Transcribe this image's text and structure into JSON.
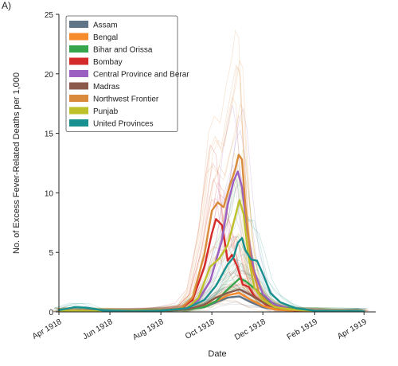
{
  "panel_label": "A)",
  "chart_data": {
    "type": "line",
    "xlabel": "Date",
    "ylabel": "No. of Excess Fever-Related Deaths per 1,000",
    "ylim": [
      0,
      25
    ],
    "yticks": [
      0,
      5,
      10,
      15,
      20,
      25
    ],
    "x_range": [
      "1918-04-01",
      "1919-04-15"
    ],
    "xticks": [
      {
        "date": "1918-04-01",
        "label": "Apr 1918"
      },
      {
        "date": "1918-06-01",
        "label": "Jun 1918"
      },
      {
        "date": "1918-08-01",
        "label": "Aug 1918"
      },
      {
        "date": "1918-10-01",
        "label": "Oct 1918"
      },
      {
        "date": "1918-12-01",
        "label": "Dec 1918"
      },
      {
        "date": "1919-02-01",
        "label": "Feb 1919"
      },
      {
        "date": "1919-04-01",
        "label": "Apr 1919"
      }
    ],
    "legend_position": "top-left",
    "grid": false,
    "series": [
      {
        "name": "Assam",
        "color": "#607487",
        "points": [
          [
            "1918-04-01",
            0.1
          ],
          [
            "1918-06-01",
            0.05
          ],
          [
            "1918-08-01",
            0.1
          ],
          [
            "1918-09-01",
            0.2
          ],
          [
            "1918-09-22",
            0.4
          ],
          [
            "1918-10-06",
            0.8
          ],
          [
            "1918-10-20",
            1.2
          ],
          [
            "1918-11-03",
            1.3
          ],
          [
            "1918-11-17",
            0.8
          ],
          [
            "1918-12-01",
            0.4
          ],
          [
            "1918-12-15",
            0.2
          ],
          [
            "1919-01-05",
            0.1
          ],
          [
            "1919-02-01",
            0.05
          ],
          [
            "1919-04-01",
            0.05
          ]
        ]
      },
      {
        "name": "Bengal",
        "color": "#f58b2b",
        "points": [
          [
            "1918-04-01",
            0.1
          ],
          [
            "1918-06-01",
            0.05
          ],
          [
            "1918-08-01",
            0.1
          ],
          [
            "1918-09-01",
            0.2
          ],
          [
            "1918-09-22",
            0.5
          ],
          [
            "1918-10-06",
            0.9
          ],
          [
            "1918-10-20",
            1.4
          ],
          [
            "1918-11-03",
            1.6
          ],
          [
            "1918-11-17",
            1.0
          ],
          [
            "1918-12-01",
            0.5
          ],
          [
            "1918-12-15",
            0.2
          ],
          [
            "1919-01-05",
            0.1
          ],
          [
            "1919-02-01",
            0.05
          ],
          [
            "1919-04-01",
            0.05
          ]
        ]
      },
      {
        "name": "Bihar and Orissa",
        "color": "#35a64b",
        "points": [
          [
            "1918-04-01",
            0.1
          ],
          [
            "1918-06-01",
            0.05
          ],
          [
            "1918-08-01",
            0.1
          ],
          [
            "1918-09-01",
            0.2
          ],
          [
            "1918-09-22",
            0.4
          ],
          [
            "1918-10-06",
            0.9
          ],
          [
            "1918-10-20",
            1.9
          ],
          [
            "1918-11-03",
            2.8
          ],
          [
            "1918-11-10",
            2.6
          ],
          [
            "1918-11-24",
            1.8
          ],
          [
            "1918-12-08",
            0.9
          ],
          [
            "1918-12-22",
            0.4
          ],
          [
            "1919-01-12",
            0.2
          ],
          [
            "1919-02-01",
            0.1
          ],
          [
            "1919-04-01",
            0.05
          ]
        ]
      },
      {
        "name": "Bombay",
        "color": "#d42a2a",
        "points": [
          [
            "1918-04-01",
            0.1
          ],
          [
            "1918-06-01",
            0.05
          ],
          [
            "1918-08-01",
            0.1
          ],
          [
            "1918-08-25",
            0.3
          ],
          [
            "1918-09-08",
            1.0
          ],
          [
            "1918-09-22",
            3.8
          ],
          [
            "1918-10-01",
            6.6
          ],
          [
            "1918-10-06",
            7.8
          ],
          [
            "1918-10-13",
            7.3
          ],
          [
            "1918-10-20",
            4.3
          ],
          [
            "1918-10-25",
            4.8
          ],
          [
            "1918-10-31",
            3.9
          ],
          [
            "1918-11-07",
            2.3
          ],
          [
            "1918-11-14",
            2.1
          ],
          [
            "1918-11-21",
            1.3
          ],
          [
            "1918-12-05",
            0.6
          ],
          [
            "1918-12-20",
            0.3
          ],
          [
            "1919-01-10",
            0.1
          ],
          [
            "1919-04-01",
            0.05
          ]
        ]
      },
      {
        "name": "Central Province and Berar",
        "color": "#9a5fc0",
        "points": [
          [
            "1918-04-01",
            0.1
          ],
          [
            "1918-06-01",
            0.05
          ],
          [
            "1918-08-01",
            0.1
          ],
          [
            "1918-09-01",
            0.3
          ],
          [
            "1918-09-15",
            1.0
          ],
          [
            "1918-09-29",
            2.6
          ],
          [
            "1918-10-13",
            6.0
          ],
          [
            "1918-10-20",
            9.0
          ],
          [
            "1918-10-27",
            11.0
          ],
          [
            "1918-11-01",
            11.8
          ],
          [
            "1918-11-06",
            10.5
          ],
          [
            "1918-11-12",
            7.0
          ],
          [
            "1918-11-20",
            3.5
          ],
          [
            "1918-12-01",
            1.5
          ],
          [
            "1918-12-15",
            0.6
          ],
          [
            "1919-01-05",
            0.2
          ],
          [
            "1919-02-01",
            0.1
          ],
          [
            "1919-04-01",
            0.05
          ]
        ]
      },
      {
        "name": "Madras",
        "color": "#8b5a4a",
        "points": [
          [
            "1918-04-01",
            0.1
          ],
          [
            "1918-06-01",
            0.05
          ],
          [
            "1918-08-01",
            0.1
          ],
          [
            "1918-09-01",
            0.2
          ],
          [
            "1918-09-22",
            0.6
          ],
          [
            "1918-10-06",
            1.2
          ],
          [
            "1918-10-20",
            1.6
          ],
          [
            "1918-11-03",
            1.9
          ],
          [
            "1918-11-17",
            1.4
          ],
          [
            "1918-12-01",
            0.8
          ],
          [
            "1918-12-15",
            0.4
          ],
          [
            "1919-01-05",
            0.2
          ],
          [
            "1919-02-01",
            0.1
          ],
          [
            "1919-04-01",
            0.05
          ]
        ]
      },
      {
        "name": "Northwest Frontier",
        "color": "#d98a3a",
        "points": [
          [
            "1918-04-01",
            0.1
          ],
          [
            "1918-06-01",
            0.05
          ],
          [
            "1918-08-01",
            0.1
          ],
          [
            "1918-08-25",
            0.3
          ],
          [
            "1918-09-08",
            1.2
          ],
          [
            "1918-09-22",
            4.8
          ],
          [
            "1918-10-01",
            8.5
          ],
          [
            "1918-10-08",
            9.2
          ],
          [
            "1918-10-15",
            8.8
          ],
          [
            "1918-10-22",
            10.5
          ],
          [
            "1918-10-29",
            12.0
          ],
          [
            "1918-11-02",
            13.2
          ],
          [
            "1918-11-06",
            12.8
          ],
          [
            "1918-11-10",
            9.0
          ],
          [
            "1918-11-17",
            4.0
          ],
          [
            "1918-11-27",
            1.5
          ],
          [
            "1918-12-10",
            0.6
          ],
          [
            "1918-12-25",
            0.2
          ],
          [
            "1919-01-20",
            0.1
          ],
          [
            "1919-04-01",
            0.05
          ]
        ]
      },
      {
        "name": "Punjab",
        "color": "#bfc12a",
        "points": [
          [
            "1918-04-01",
            0.1
          ],
          [
            "1918-06-01",
            0.05
          ],
          [
            "1918-08-01",
            0.1
          ],
          [
            "1918-09-01",
            0.3
          ],
          [
            "1918-09-15",
            1.2
          ],
          [
            "1918-09-29",
            3.8
          ],
          [
            "1918-10-10",
            4.5
          ],
          [
            "1918-10-20",
            5.6
          ],
          [
            "1918-10-27",
            7.5
          ],
          [
            "1918-11-03",
            9.4
          ],
          [
            "1918-11-08",
            8.2
          ],
          [
            "1918-11-14",
            4.5
          ],
          [
            "1918-11-21",
            2.0
          ],
          [
            "1918-12-01",
            1.0
          ],
          [
            "1918-12-15",
            0.4
          ],
          [
            "1919-01-05",
            0.2
          ],
          [
            "1919-02-01",
            0.1
          ],
          [
            "1919-04-01",
            0.05
          ]
        ]
      },
      {
        "name": "United Provinces",
        "color": "#17908f",
        "points": [
          [
            "1918-04-01",
            0.15
          ],
          [
            "1918-04-20",
            0.4
          ],
          [
            "1918-05-05",
            0.35
          ],
          [
            "1918-05-25",
            0.1
          ],
          [
            "1918-07-01",
            0.05
          ],
          [
            "1918-08-01",
            0.1
          ],
          [
            "1918-09-01",
            0.3
          ],
          [
            "1918-09-22",
            1.0
          ],
          [
            "1918-10-06",
            2.2
          ],
          [
            "1918-10-20",
            4.0
          ],
          [
            "1918-10-27",
            4.6
          ],
          [
            "1918-11-01",
            5.8
          ],
          [
            "1918-11-06",
            6.2
          ],
          [
            "1918-11-10",
            5.2
          ],
          [
            "1918-11-17",
            4.4
          ],
          [
            "1918-11-24",
            4.3
          ],
          [
            "1918-12-01",
            3.2
          ],
          [
            "1918-12-10",
            1.6
          ],
          [
            "1918-12-22",
            0.8
          ],
          [
            "1919-01-10",
            0.3
          ],
          [
            "1919-02-01",
            0.1
          ],
          [
            "1919-04-01",
            0.05
          ]
        ]
      }
    ]
  }
}
